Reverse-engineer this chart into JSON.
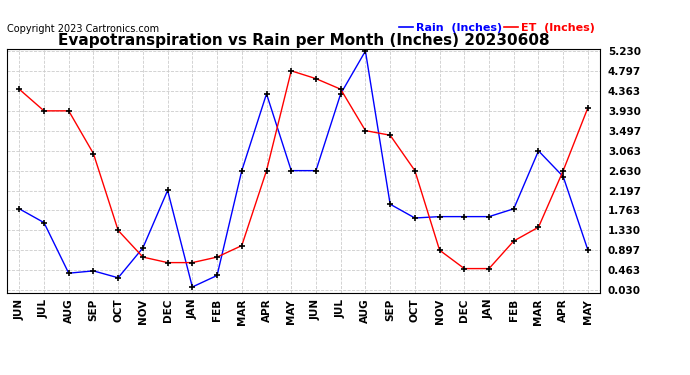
{
  "title": "Evapotranspiration vs Rain per Month (Inches) 20230608",
  "copyright": "Copyright 2023 Cartronics.com",
  "months": [
    "JUN",
    "JUL",
    "AUG",
    "SEP",
    "OCT",
    "NOV",
    "DEC",
    "JAN",
    "FEB",
    "MAR",
    "APR",
    "MAY",
    "JUN",
    "JUL",
    "AUG",
    "SEP",
    "OCT",
    "NOV",
    "DEC",
    "JAN",
    "FEB",
    "MAR",
    "APR",
    "MAY"
  ],
  "rain": [
    1.8,
    1.5,
    0.4,
    0.45,
    0.3,
    0.95,
    2.2,
    0.1,
    0.35,
    2.63,
    4.3,
    2.63,
    2.63,
    4.3,
    5.23,
    1.9,
    1.6,
    1.63,
    1.63,
    1.63,
    1.8,
    3.06,
    2.5,
    0.9
  ],
  "et": [
    4.4,
    3.93,
    3.93,
    3.0,
    1.33,
    0.75,
    0.63,
    0.63,
    0.75,
    1.0,
    2.63,
    4.8,
    4.63,
    4.4,
    3.5,
    3.4,
    2.63,
    0.9,
    0.5,
    0.5,
    1.1,
    1.4,
    2.63,
    4.0
  ],
  "rain_color": "#0000ff",
  "et_color": "#ff0000",
  "grid_color": "#cccccc",
  "bg_color": "#ffffff",
  "ylim_min": 0.03,
  "ylim_max": 5.23,
  "yticks": [
    0.03,
    0.463,
    0.897,
    1.33,
    1.763,
    2.197,
    2.63,
    3.063,
    3.497,
    3.93,
    4.363,
    4.797,
    5.23
  ],
  "ytick_labels": [
    "0.030",
    "0.463",
    "0.897",
    "1.330",
    "1.763",
    "2.197",
    "2.630",
    "3.063",
    "3.497",
    "3.930",
    "4.363",
    "4.797",
    "5.230"
  ],
  "legend_rain": "Rain  (Inches)",
  "legend_et": "ET  (Inches)",
  "title_fontsize": 11,
  "legend_fontsize": 8,
  "tick_fontsize": 7.5,
  "copyright_fontsize": 7
}
